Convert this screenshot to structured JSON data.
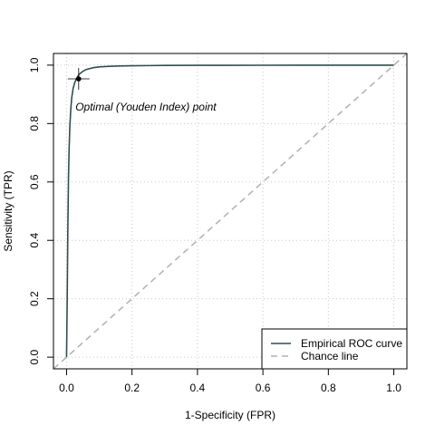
{
  "chart_data": {
    "type": "line",
    "title": "",
    "xlabel": "1-Specificity (FPR)",
    "ylabel": "Sensitivity (TPR)",
    "xlim": [
      -0.04,
      1.04
    ],
    "ylim": [
      -0.04,
      1.04
    ],
    "x_ticks": [
      0.0,
      0.2,
      0.4,
      0.6,
      0.8,
      1.0
    ],
    "x_tick_labels": [
      "0.0",
      "0.2",
      "0.4",
      "0.6",
      "0.8",
      "1.0"
    ],
    "y_ticks": [
      0.0,
      0.2,
      0.4,
      0.6,
      0.8,
      1.0
    ],
    "y_tick_labels": [
      "0.0",
      "0.2",
      "0.4",
      "0.6",
      "0.8",
      "1.0"
    ],
    "grid": true,
    "legend_position": "bottom-right",
    "series": [
      {
        "name": "Empirical ROC curve",
        "color": "#2f4f4f",
        "style": "solid",
        "x": [
          0.0,
          0.002,
          0.004,
          0.006,
          0.008,
          0.01,
          0.013,
          0.016,
          0.02,
          0.025,
          0.03,
          0.035,
          0.04,
          0.05,
          0.06,
          0.08,
          0.1,
          0.13,
          0.16,
          0.2,
          0.25,
          0.3,
          0.4,
          0.5,
          0.6,
          0.7,
          0.8,
          0.9,
          1.0
        ],
        "y": [
          0.0,
          0.2,
          0.45,
          0.62,
          0.72,
          0.79,
          0.85,
          0.89,
          0.92,
          0.94,
          0.953,
          0.963,
          0.97,
          0.979,
          0.985,
          0.991,
          0.994,
          0.996,
          0.997,
          0.998,
          0.9985,
          0.999,
          0.9993,
          0.9995,
          0.9997,
          0.9998,
          0.9999,
          1.0,
          1.0
        ]
      },
      {
        "name": "Chance line",
        "color": "#b0b0b0",
        "style": "dashed",
        "x": [
          -0.04,
          1.04
        ],
        "y": [
          -0.04,
          1.04
        ]
      }
    ],
    "optimal_point": {
      "x": 0.037,
      "y": 0.953
    },
    "annotation": {
      "text": "Optimal (Youden Index) point",
      "x": 0.027,
      "y": 0.845
    }
  }
}
